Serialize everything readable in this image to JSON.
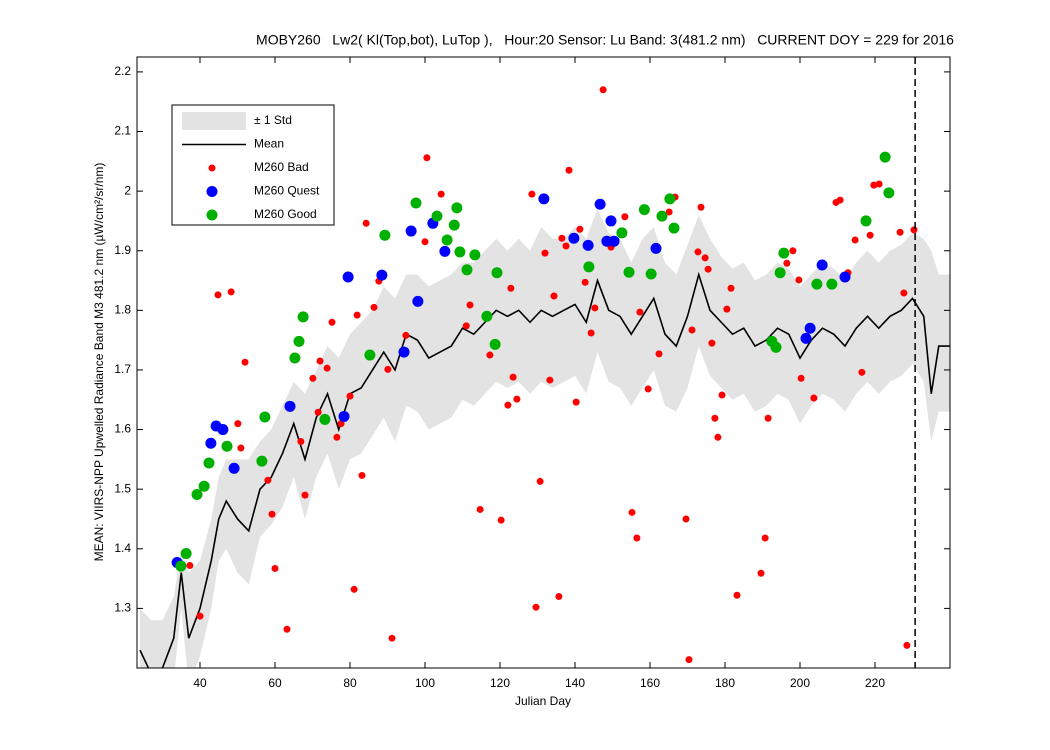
{
  "chart_data": {
    "type": "line",
    "title": "MOBY260   Lw2( Kl(Top,bot), LuTop ),   Hour:20 Sensor: Lu Band: 3(481.2 nm)   CURRENT DOY = 229 for 2016",
    "x_label": "Julian Day",
    "y_label": "MEAN: VIIRS-NPP Upwelled Radiance Band M3 481.2 nm (µW/cm²/sr/nm)",
    "xlim": [
      23.2,
      240
    ],
    "ylim": [
      1.2,
      2.225
    ],
    "xticks": [
      40,
      60,
      80,
      100,
      120,
      140,
      160,
      180,
      200,
      220
    ],
    "yticks": [
      1.3,
      1.4,
      1.5,
      1.6,
      1.7,
      1.8,
      1.9,
      2,
      2.1,
      2.2
    ],
    "vline": 230.7,
    "legend": "upper left",
    "series": [
      {
        "name": "± 1 Std",
        "type": "band",
        "color": "#e3e3e3",
        "x": [
          24,
          27,
          30,
          33,
          35,
          37,
          40,
          43,
          45,
          47,
          50,
          53,
          56,
          59,
          62,
          65,
          68,
          71,
          74,
          77,
          80,
          83,
          86,
          89,
          92,
          95,
          98,
          101,
          104,
          107,
          110,
          113,
          116,
          119,
          122,
          125,
          128,
          131,
          134,
          137,
          140,
          143,
          146,
          149,
          152,
          155,
          158,
          161,
          164,
          167,
          170,
          173,
          176,
          179,
          182,
          185,
          188,
          191,
          194,
          197,
          200,
          203,
          206,
          209,
          212,
          215,
          218,
          221,
          224,
          227,
          230,
          233,
          235,
          237,
          240
        ],
        "lower": [
          1.16,
          1.12,
          1.14,
          1.18,
          1.3,
          1.17,
          1.22,
          1.3,
          1.38,
          1.4,
          1.36,
          1.34,
          1.42,
          1.44,
          1.47,
          1.52,
          1.45,
          1.52,
          1.56,
          1.5,
          1.55,
          1.56,
          1.59,
          1.62,
          1.58,
          1.64,
          1.63,
          1.6,
          1.61,
          1.62,
          1.65,
          1.64,
          1.66,
          1.68,
          1.67,
          1.68,
          1.66,
          1.68,
          1.67,
          1.68,
          1.69,
          1.66,
          1.73,
          1.68,
          1.67,
          1.64,
          1.67,
          1.7,
          1.64,
          1.63,
          1.67,
          1.74,
          1.69,
          1.67,
          1.65,
          1.66,
          1.63,
          1.64,
          1.66,
          1.65,
          1.61,
          1.64,
          1.66,
          1.65,
          1.63,
          1.66,
          1.68,
          1.66,
          1.68,
          1.69,
          1.71,
          1.68,
          1.58,
          1.63,
          1.63
        ],
        "upper": [
          1.3,
          1.28,
          1.28,
          1.32,
          1.4,
          1.36,
          1.38,
          1.45,
          1.52,
          1.55,
          1.55,
          1.55,
          1.58,
          1.6,
          1.64,
          1.68,
          1.66,
          1.7,
          1.74,
          1.72,
          1.76,
          1.78,
          1.8,
          1.84,
          1.82,
          1.86,
          1.86,
          1.84,
          1.85,
          1.86,
          1.88,
          1.88,
          1.9,
          1.92,
          1.9,
          1.92,
          1.9,
          1.94,
          1.92,
          1.92,
          1.94,
          1.92,
          1.97,
          1.93,
          1.92,
          1.88,
          1.92,
          1.94,
          1.88,
          1.86,
          1.91,
          1.96,
          1.92,
          1.89,
          1.87,
          1.88,
          1.85,
          1.86,
          1.88,
          1.87,
          1.84,
          1.86,
          1.88,
          1.87,
          1.85,
          1.88,
          1.9,
          1.88,
          1.9,
          1.91,
          1.93,
          1.92,
          1.9,
          1.86,
          1.86
        ]
      },
      {
        "name": "Mean",
        "type": "line",
        "color": "#000000",
        "x": [
          24,
          27,
          30,
          33,
          35,
          37,
          40,
          43,
          45,
          47,
          50,
          53,
          56,
          59,
          62,
          65,
          68,
          71,
          74,
          77,
          80,
          83,
          86,
          89,
          92,
          95,
          98,
          101,
          104,
          107,
          110,
          113,
          116,
          119,
          122,
          125,
          128,
          131,
          134,
          137,
          140,
          143,
          146,
          149,
          152,
          155,
          158,
          161,
          164,
          167,
          170,
          173,
          176,
          179,
          182,
          185,
          188,
          191,
          194,
          197,
          200,
          203,
          206,
          209,
          212,
          215,
          218,
          221,
          224,
          227,
          230,
          233,
          235,
          237,
          240
        ],
        "values": [
          1.23,
          1.19,
          1.2,
          1.25,
          1.36,
          1.25,
          1.3,
          1.38,
          1.45,
          1.48,
          1.45,
          1.43,
          1.5,
          1.52,
          1.56,
          1.61,
          1.55,
          1.62,
          1.66,
          1.6,
          1.66,
          1.67,
          1.7,
          1.73,
          1.7,
          1.76,
          1.75,
          1.72,
          1.73,
          1.74,
          1.77,
          1.76,
          1.78,
          1.8,
          1.79,
          1.8,
          1.78,
          1.8,
          1.79,
          1.8,
          1.81,
          1.78,
          1.85,
          1.8,
          1.79,
          1.76,
          1.79,
          1.82,
          1.76,
          1.74,
          1.79,
          1.86,
          1.8,
          1.78,
          1.76,
          1.77,
          1.74,
          1.75,
          1.77,
          1.76,
          1.72,
          1.75,
          1.77,
          1.76,
          1.74,
          1.77,
          1.79,
          1.77,
          1.79,
          1.8,
          1.82,
          1.79,
          1.66,
          1.74,
          1.74
        ]
      },
      {
        "name": "M260 Bad",
        "type": "scatter",
        "color": "#ff0000",
        "size": 3.5,
        "x": [
          37.3,
          40,
          44.8,
          48.3,
          50.1,
          50.9,
          52,
          58.1,
          59.2,
          60,
          63.2,
          66.9,
          68,
          70.1,
          72,
          71.5,
          73.9,
          75.2,
          76.5,
          77.6,
          80,
          81.1,
          81.9,
          83.2,
          84.3,
          86.4,
          87.7,
          90.1,
          91.2,
          94.9,
          100,
          100.5,
          104.3,
          111,
          112,
          114.7,
          117.3,
          120.3,
          122.1,
          122.9,
          123.5,
          124.5,
          128.5,
          129.6,
          130.7,
          132,
          133.3,
          134.4,
          135.7,
          136.5,
          137.6,
          138.4,
          140.3,
          141.3,
          142.7,
          144.3,
          145.3,
          147.5,
          149.6,
          153.3,
          155.2,
          156.5,
          157.3,
          159.5,
          162.4,
          165.1,
          166.7,
          169.6,
          170.4,
          171.2,
          172.8,
          173.6,
          174.7,
          175.5,
          176.5,
          177.3,
          178.1,
          179.2,
          180.5,
          181.6,
          183.2,
          189.6,
          190.7,
          191.5,
          196.5,
          198.1,
          199.7,
          200.3,
          203.7,
          209.6,
          210.7,
          212.8,
          214.7,
          216.5,
          218.7,
          219.7,
          221.1,
          226.7,
          227.7,
          228.5,
          230.4
        ],
        "values": [
          1.372,
          1.287,
          1.826,
          1.831,
          1.61,
          1.569,
          1.713,
          1.515,
          1.458,
          1.367,
          1.265,
          1.58,
          1.49,
          1.686,
          1.715,
          1.629,
          1.703,
          1.78,
          1.587,
          1.61,
          1.656,
          1.332,
          1.792,
          1.523,
          1.946,
          1.805,
          1.849,
          1.701,
          1.25,
          1.758,
          1.915,
          2.056,
          1.995,
          1.774,
          1.809,
          1.466,
          1.725,
          1.448,
          1.641,
          1.837,
          1.688,
          1.651,
          1.995,
          1.302,
          1.513,
          1.896,
          1.683,
          1.824,
          1.32,
          1.921,
          1.908,
          2.035,
          1.646,
          1.936,
          1.847,
          1.762,
          1.804,
          2.17,
          1.906,
          1.957,
          1.461,
          1.418,
          1.797,
          1.668,
          1.727,
          1.965,
          1.99,
          1.45,
          1.214,
          1.767,
          1.898,
          1.973,
          1.888,
          1.869,
          1.745,
          1.619,
          1.587,
          1.658,
          1.802,
          1.837,
          1.322,
          1.359,
          1.418,
          1.619,
          1.879,
          1.9,
          1.851,
          1.686,
          1.653,
          1.981,
          1.985,
          1.863,
          1.918,
          1.696,
          1.926,
          2.01,
          2.012,
          1.931,
          1.829,
          1.238,
          1.935
        ]
      },
      {
        "name": "M260 Quest",
        "type": "scatter",
        "color": "#0000ff",
        "size": 5.5,
        "x": [
          33.9,
          42.9,
          44.3,
          46.1,
          49.1,
          64,
          78.4,
          79.5,
          88.5,
          94.4,
          96.3,
          98.1,
          102.1,
          105.3,
          131.7,
          139.7,
          143.5,
          146.7,
          148.5,
          149.6,
          150.4,
          161.6,
          201.6,
          202.7,
          205.9,
          212
        ],
        "values": [
          1.377,
          1.577,
          1.606,
          1.6,
          1.535,
          1.639,
          1.622,
          1.856,
          1.859,
          1.73,
          1.933,
          1.815,
          1.946,
          1.899,
          1.987,
          1.921,
          1.909,
          1.978,
          1.916,
          1.95,
          1.916,
          1.904,
          1.753,
          1.77,
          1.876,
          1.856
        ]
      },
      {
        "name": "M260 Good",
        "type": "scatter",
        "color": "#00b000",
        "size": 5.5,
        "x": [
          34.9,
          36.3,
          39.2,
          41.1,
          42.4,
          47.2,
          56.5,
          57.3,
          65.3,
          66.4,
          67.5,
          73.3,
          85.3,
          89.3,
          97.6,
          103.2,
          105.9,
          107.8,
          108.5,
          109.3,
          111.2,
          113.3,
          116.5,
          118.7,
          119.2,
          143.7,
          152.5,
          154.4,
          158.5,
          160.3,
          163.2,
          165.3,
          166.4,
          192.5,
          193.6,
          194.7,
          195.7,
          204.5,
          208.5,
          217.6,
          222.7,
          223.7
        ],
        "values": [
          1.371,
          1.392,
          1.491,
          1.505,
          1.544,
          1.572,
          1.547,
          1.621,
          1.72,
          1.748,
          1.789,
          1.617,
          1.725,
          1.926,
          1.98,
          1.958,
          1.918,
          1.943,
          1.972,
          1.898,
          1.868,
          1.893,
          1.79,
          1.743,
          1.863,
          1.873,
          1.93,
          1.864,
          1.969,
          1.861,
          1.958,
          1.987,
          1.938,
          1.748,
          1.738,
          1.863,
          1.896,
          1.844,
          1.844,
          1.95,
          2.057,
          1.997
        ]
      }
    ]
  }
}
